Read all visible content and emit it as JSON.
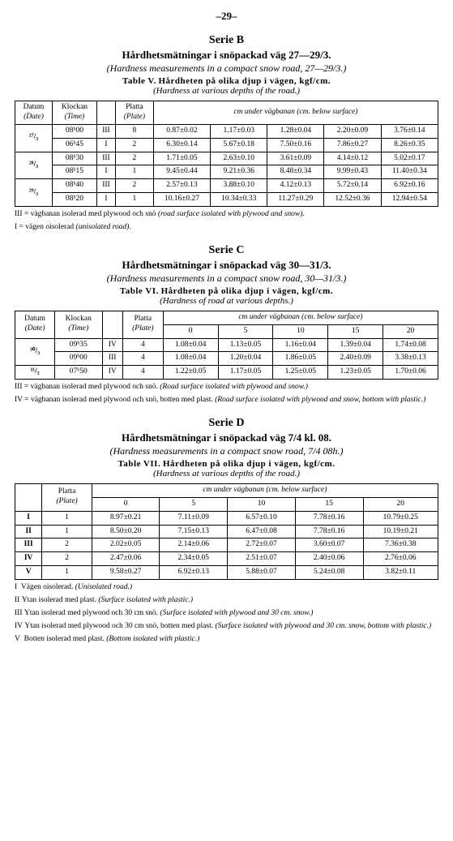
{
  "page_number": "–29–",
  "serieB": {
    "serie": "Serie B",
    "title": "Hårdhetsmätningar i snöpackad väg 27—29/3.",
    "subtitle_it": "(Hardness measurements in a compact snow road, 27—29/3.)",
    "tableno": "Table V.",
    "tableline_bold": "Hårdheten på olika djup i vägen, kgf/cm.",
    "tableline_it": "(Hardness at various depths of the road.)",
    "headers": {
      "datum": "Datum",
      "datum_it": "(Date)",
      "klockan": "Klockan",
      "klockan_it": "(Time)",
      "blank": "",
      "platta": "Platta",
      "platta_it": "(Plate)",
      "cm_line": "cm under vägbanan (cm. below surface)"
    },
    "rows": [
      {
        "date": "²⁷/₃",
        "times": [
          "08ʰ00",
          "06ʰ45"
        ],
        "marks": [
          "III",
          "I"
        ],
        "plates": [
          "8",
          "2"
        ],
        "cells": [
          [
            "0.87±0.02",
            "1.17±0.03",
            "1.28±0.04",
            "2.20±0.09",
            "3.76±0.14"
          ],
          [
            "6.30±0.14",
            "5.67±0.18",
            "7.50±0.16",
            "7.86±0.27",
            "8.26±0.35"
          ]
        ]
      },
      {
        "date": "²⁸/₃",
        "times": [
          "08ʰ30",
          "08ʰ15"
        ],
        "marks": [
          "III",
          "I"
        ],
        "plates": [
          "2",
          "1"
        ],
        "cells": [
          [
            "1.71±0.05",
            "2.63±0.10",
            "3.61±0.09",
            "4.14±0.12",
            "5.02±0.17"
          ],
          [
            "9.45±0.44",
            "9.21±0.36",
            "8.48±0.34",
            "9.99±0.43",
            "11.40±0.34"
          ]
        ]
      },
      {
        "date": "²⁹/₃",
        "times": [
          "08ʰ40",
          "08ʰ20"
        ],
        "marks": [
          "III",
          "I"
        ],
        "plates": [
          "2",
          "1"
        ],
        "cells": [
          [
            "2.57±0.13",
            "3.88±0.10",
            "4.12±0.13",
            "5.72±0.14",
            "6.92±0.16"
          ],
          [
            "10.16±0.27",
            "10.34±0.33",
            "11.27±0.29",
            "12.52±0.36",
            "12.94±0.54"
          ]
        ]
      }
    ],
    "notes": [
      {
        "mark": "III =",
        "sv": "vägbanan isolerad med plywood och snö ",
        "it": "(road surface isolated with plywood and snow)."
      },
      {
        "mark": "I  =",
        "sv": "vägen oisolerad ",
        "it": "(unisolated road)."
      }
    ]
  },
  "serieC": {
    "serie": "Serie C",
    "title": "Hårdhetsmätningar i snöpackad väg 30—31/3.",
    "subtitle_it": "(Hardness measurements in a compact snow road, 30—31/3.)",
    "tableno": "Table VI.",
    "tableline_bold": "Hårdheten på olika djup i vägen, kgf/cm.",
    "tableline_it": "(Hardness of road at various depths.)",
    "headers": {
      "datum": "Datum",
      "datum_it": "(Date)",
      "klockan": "Klockan",
      "klockan_it": "(Time)",
      "blank": "",
      "platta": "Platta",
      "platta_it": "(Plate)",
      "cm_line": "cm under vägbanan (cm. below surface)",
      "cols": [
        "0",
        "5",
        "10",
        "15",
        "20"
      ]
    },
    "rows": [
      {
        "date": "³⁰/₃",
        "times": [
          "09ʰ35",
          "09ʰ00"
        ],
        "marks": [
          "IV",
          "III"
        ],
        "plates": [
          "4",
          "4"
        ],
        "cells": [
          [
            "1.08±0.04",
            "1.13±0.05",
            "1.16±0.04",
            "1.39±0.04",
            "1.74±0.08"
          ],
          [
            "1.08±0.04",
            "1.20±0.04",
            "1.86±0.05",
            "2.40±0.09",
            "3.38±0.13"
          ]
        ]
      },
      {
        "date": "³¹/₃",
        "times": [
          "07ʰ50"
        ],
        "marks": [
          "IV"
        ],
        "plates": [
          "4"
        ],
        "cells": [
          [
            "1.22±0.05",
            "1.17±0.05",
            "1.25±0.05",
            "1.23±0.05",
            "1.70±0.06"
          ]
        ]
      }
    ],
    "notes": [
      {
        "mark": "III =",
        "sv": "vägbanan isolerad med plywood och snö. ",
        "it": "(Road surface isolated with plywood and snow.)"
      },
      {
        "mark": "IV  =",
        "sv": "vägbanan isolerad med plywood och snö, botten med plast. ",
        "it": "(Road surface isolated with plywood and snow, bottom with plastic.)"
      }
    ]
  },
  "serieD": {
    "serie": "Serie D",
    "title": "Hårdhetsmätningar i snöpackad väg 7/4 kl. 08.",
    "subtitle_it": "(Hardness measurements in a compact snow road, 7/4 08h.)",
    "tableno": "Table VII.",
    "tableline_bold": "Hårdheten på olika djup i vägen, kgf/cm.",
    "tableline_it": "(Hardness at various depths of the road.)",
    "headers": {
      "blank": "",
      "platta": "Platta",
      "platta_it": "(Plate)",
      "cm_line": "cm under vägbanan (cm. below surface)",
      "cols": [
        "0",
        "5",
        "10",
        "15",
        "20"
      ]
    },
    "rows": [
      {
        "mark": "I",
        "plate": "1",
        "cells": [
          "8.97±0.21",
          "7.11±0.09",
          "6.57±0.10",
          "7.78±0.16",
          "10.79±0.25"
        ]
      },
      {
        "mark": "II",
        "plate": "1",
        "cells": [
          "8.50±0.20",
          "7.15±0.13",
          "6.47±0.08",
          "7.78±0.16",
          "10.19±0.21"
        ]
      },
      {
        "mark": "III",
        "plate": "2",
        "cells": [
          "2.02±0.05",
          "2.14±0.06",
          "2.72±0.07",
          "3.60±0.07",
          "7.36±0.38"
        ]
      },
      {
        "mark": "IV",
        "plate": "2",
        "cells": [
          "2.47±0.06",
          "2.34±0.05",
          "2.51±0.07",
          "2.40±0.06",
          "2.76±0.06"
        ]
      },
      {
        "mark": "V",
        "plate": "1",
        "cells": [
          "9.58±0.27",
          "6.92±0.13",
          "5.88±0.07",
          "5.24±0.08",
          "3.82±0.11"
        ]
      }
    ],
    "notes": [
      {
        "mark": "I",
        "sv": "Vägen oisolerad. ",
        "it": "(Unisolated road.)"
      },
      {
        "mark": "II",
        "sv": "Ytan isolerad med plast. ",
        "it": "(Surface isolated with plastic.)"
      },
      {
        "mark": "III",
        "sv": "Ytan isolerad med plywood och 30 cm snö. ",
        "it": "(Surface isolated with plywood and 30 cm. snow.)"
      },
      {
        "mark": "IV",
        "sv": "Ytan isolerad med plywood och 30 cm snö, botten med plast. ",
        "it": "(Surface isolated with plywood and 30 cm. snow, bottom with plastic.)"
      },
      {
        "mark": "V",
        "sv": "Botten isolerad med plast. ",
        "it": "(Bottom isolated with plastic.)"
      }
    ]
  }
}
